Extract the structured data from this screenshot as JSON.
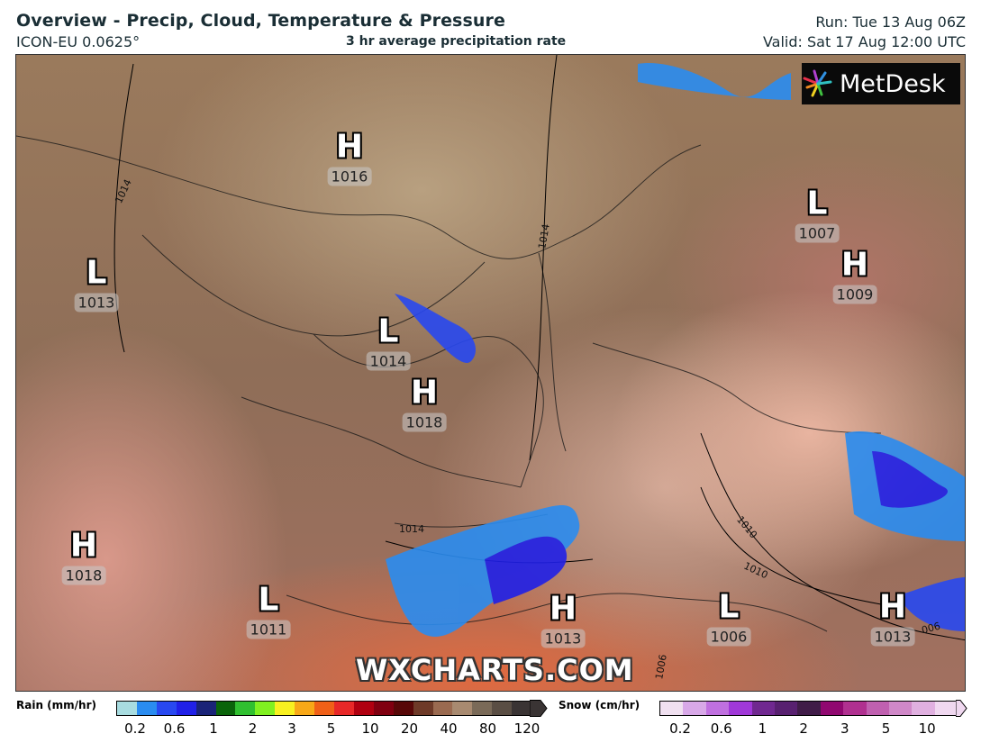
{
  "header": {
    "title": "Overview - Precip, Cloud, Temperature & Pressure",
    "model": "ICON-EU 0.0625°",
    "subtitle": "3 hr average precipitation rate",
    "run": "Run: Tue 13 Aug 06Z",
    "valid": "Valid: Sat 17 Aug 12:00 UTC"
  },
  "map": {
    "logo": "MetDesk",
    "watermark": "WXCHARTS.COM",
    "pressure_centers": [
      {
        "type": "H",
        "value": "1016"
      },
      {
        "type": "L",
        "value": "1007"
      },
      {
        "type": "H",
        "value": "1009"
      },
      {
        "type": "L",
        "value": "1013"
      },
      {
        "type": "L",
        "value": "1014"
      },
      {
        "type": "H",
        "value": "1018"
      },
      {
        "type": "H",
        "value": "1018"
      },
      {
        "type": "L",
        "value": "1011"
      },
      {
        "type": "L",
        "value": "1006"
      },
      {
        "type": "H",
        "value": "1013"
      },
      {
        "type": "H",
        "value": "1013"
      }
    ],
    "isobar_labels": [
      "1014",
      "1014",
      "1014",
      "1010",
      "1010",
      "1006",
      "006"
    ]
  },
  "legend": {
    "rain": {
      "label": "Rain (mm/hr)",
      "ticks": [
        "0.2",
        "0.6",
        "1",
        "2",
        "3",
        "5",
        "10",
        "20",
        "40",
        "80",
        "120"
      ],
      "colors": [
        "#a8dce0",
        "#2a8cf0",
        "#2848f0",
        "#2020e8",
        "#1a2378",
        "#0a640a",
        "#30c030",
        "#80f020",
        "#f8f020",
        "#f8a818",
        "#f06018",
        "#e82828",
        "#b00010",
        "#800010",
        "#580808",
        "#6e3a28",
        "#9a6a50",
        "#a88a70",
        "#7a6a58",
        "#5a4e44",
        "#3a3434"
      ]
    },
    "snow": {
      "label": "Snow (cm/hr)",
      "ticks": [
        "0.2",
        "0.6",
        "1",
        "2",
        "3",
        "5",
        "10"
      ],
      "colors": [
        "#f0e0f0",
        "#d8a8e8",
        "#c070e0",
        "#a038d8",
        "#702890",
        "#582070",
        "#401c48",
        "#900870",
        "#b03090",
        "#c060b0",
        "#d088c8",
        "#e0b0e0",
        "#f0d8f0"
      ]
    }
  }
}
